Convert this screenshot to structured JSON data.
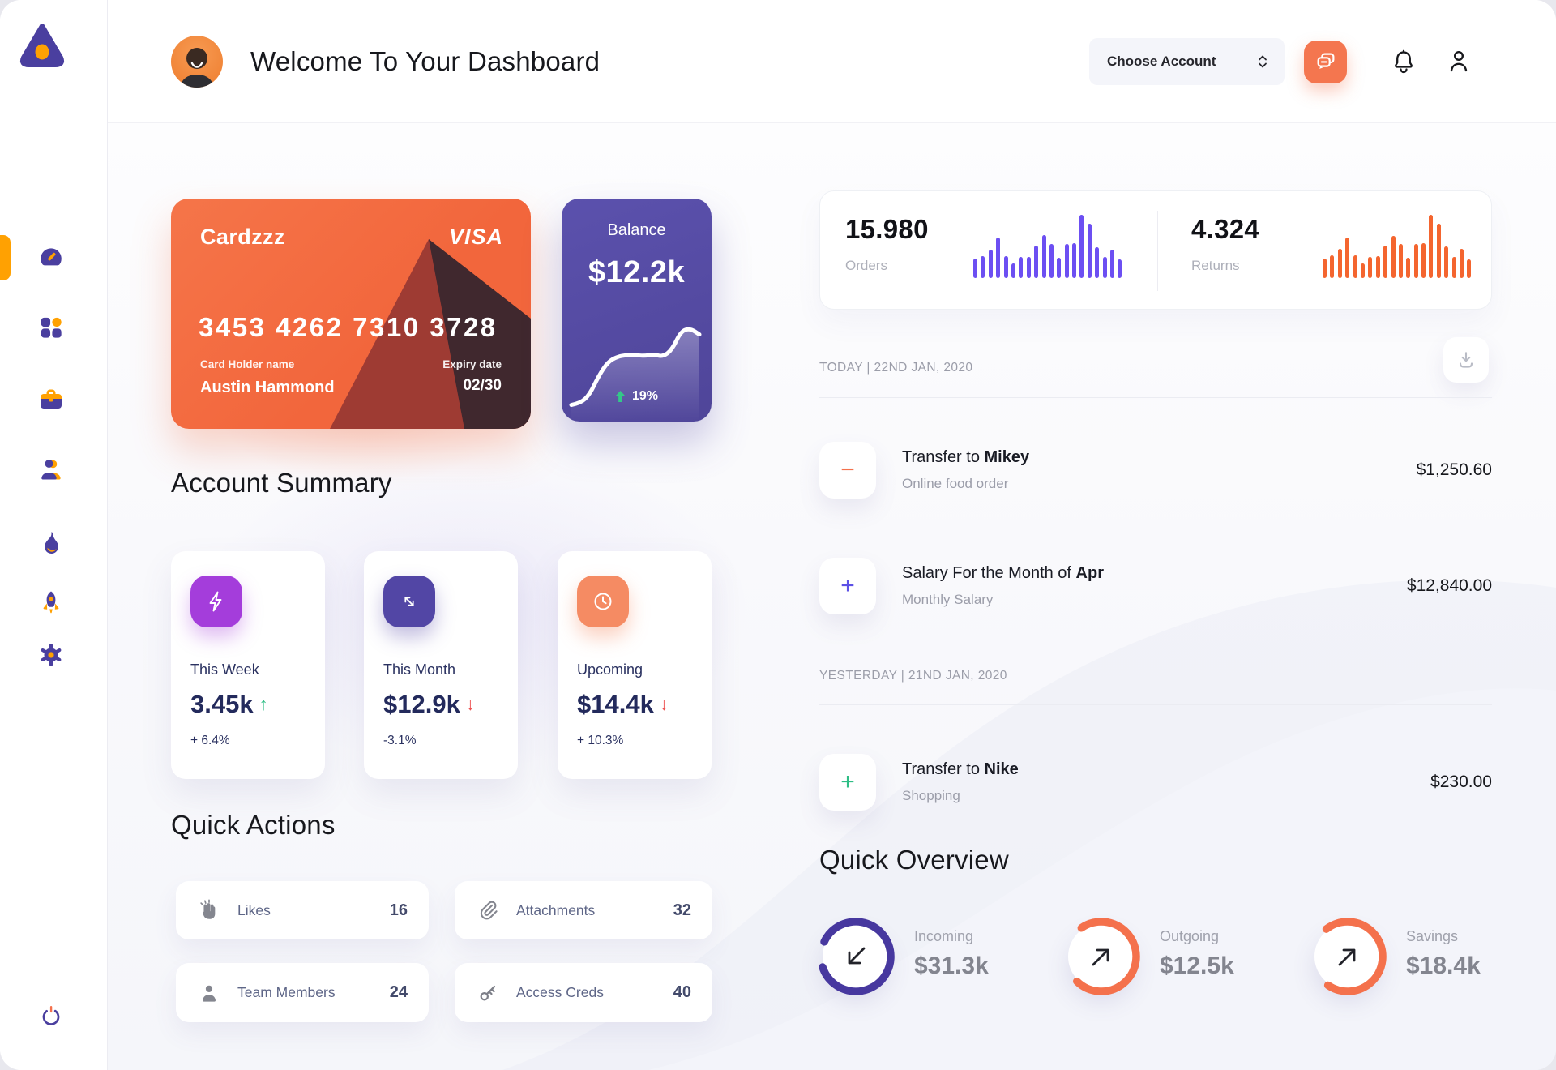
{
  "header": {
    "title": "Welcome To Your Dashboard",
    "account_select": "Choose Account",
    "icons": [
      "chat-icon",
      "bell-icon",
      "user-icon"
    ]
  },
  "sidebar": {
    "items": [
      {
        "name": "dashboard",
        "active": true
      },
      {
        "name": "apps"
      },
      {
        "name": "projects"
      },
      {
        "name": "team"
      },
      {
        "name": "activity"
      },
      {
        "name": "launch"
      },
      {
        "name": "settings"
      }
    ],
    "logout": {
      "name": "power"
    }
  },
  "credit_card": {
    "title": "Cardzzz",
    "brand": "VISA",
    "number": "3453 4262 7310 3728",
    "holder_label": "Card Holder name",
    "holder_name": "Austin Hammond",
    "expiry_label": "Expiry date",
    "expiry": "02/30"
  },
  "balance_card": {
    "label": "Balance",
    "value": "$12.2k",
    "change": "19%"
  },
  "stats": {
    "orders": {
      "value": "15.980",
      "label": "Orders"
    },
    "returns": {
      "value": "4.324",
      "label": "Returns"
    }
  },
  "chart_data": [
    {
      "type": "bar",
      "title": "Orders activity",
      "values": [
        30,
        34,
        44,
        62,
        34,
        22,
        33,
        33,
        50,
        66,
        53,
        31,
        52,
        54,
        97,
        84,
        48,
        33,
        44,
        29
      ],
      "color": "#6C4FF2"
    },
    {
      "type": "bar",
      "title": "Returns activity",
      "values": [
        30,
        35,
        45,
        62,
        35,
        22,
        33,
        34,
        50,
        65,
        53,
        31,
        52,
        54,
        97,
        84,
        49,
        33,
        45,
        29
      ],
      "color": "#F4652F"
    },
    {
      "type": "line",
      "title": "Balance trend",
      "values": [
        8,
        10,
        20,
        42,
        58,
        64,
        66,
        66,
        65,
        67,
        64,
        72,
        94,
        97,
        90
      ],
      "color": "#ffffff"
    },
    {
      "type": "donut",
      "title": "Quick Overview",
      "slices": [
        {
          "label": "Incoming",
          "value": "$31.3k",
          "percent": 88
        },
        {
          "label": "Outgoing",
          "value": "$12.5k",
          "percent": 72
        },
        {
          "label": "Savings",
          "value": "$18.4k",
          "percent": 70
        }
      ]
    }
  ],
  "account_summary": {
    "title": "Account Summary",
    "cards": [
      {
        "label": "This Week",
        "value": "3.45k",
        "arrow": "↑",
        "arrow_color": "#2EBD85",
        "change": "+ 6.4%",
        "icon": "lightning-icon",
        "icon_color": "#A43DDB"
      },
      {
        "label": "This Month",
        "value": "$12.9k",
        "arrow": "↓",
        "arrow_color": "#ED5252",
        "change": "-3.1%",
        "icon": "trend-arrows-icon",
        "icon_color": "#5246A5"
      },
      {
        "label": "Upcoming",
        "value": "$14.4k",
        "arrow": "↓",
        "arrow_color": "#ED5252",
        "change": "+ 10.3%",
        "icon": "clock-icon",
        "icon_color": "#F58B63"
      }
    ]
  },
  "quick_actions": {
    "title": "Quick Actions",
    "items": [
      {
        "label": "Likes",
        "count": "16",
        "icon": "clap-icon"
      },
      {
        "label": "Attachments",
        "count": "32",
        "icon": "paperclip-icon"
      },
      {
        "label": "Team Members",
        "count": "24",
        "icon": "member-icon"
      },
      {
        "label": "Access Creds",
        "count": "40",
        "icon": "key-icon"
      }
    ]
  },
  "transactions": {
    "download_icon": "download-icon",
    "groups": [
      {
        "date_label": "TODAY | 22ND JAN, 2020",
        "items": [
          {
            "title_prefix": "Transfer to ",
            "title_bold": "Mikey",
            "subtitle": "Online food order",
            "amount": "$1,250.60",
            "sign": "−",
            "sign_color": "#F4714C"
          },
          {
            "title_prefix": "Salary For the Month of ",
            "title_bold": "Apr",
            "subtitle": "Monthly Salary",
            "amount": "$12,840.00",
            "sign": "+",
            "sign_color": "#5C50E6"
          }
        ]
      },
      {
        "date_label": "YESTERDAY | 21ND JAN, 2020",
        "items": [
          {
            "title_prefix": "Transfer to ",
            "title_bold": "Nike",
            "subtitle": "Shopping",
            "amount": "$230.00",
            "sign": "+",
            "sign_color": "#2EBD85"
          }
        ]
      }
    ]
  },
  "quick_overview": {
    "title": "Quick Overview",
    "items": [
      {
        "label": "Incoming",
        "value": "$31.3k",
        "percent": 88,
        "color": "#47389F",
        "direction": "down-left"
      },
      {
        "label": "Outgoing",
        "value": "$12.5k",
        "percent": 72,
        "color": "#F4714C",
        "direction": "up-right"
      },
      {
        "label": "Savings",
        "value": "$18.4k",
        "percent": 70,
        "color": "#F4714C",
        "direction": "up-right"
      }
    ]
  }
}
